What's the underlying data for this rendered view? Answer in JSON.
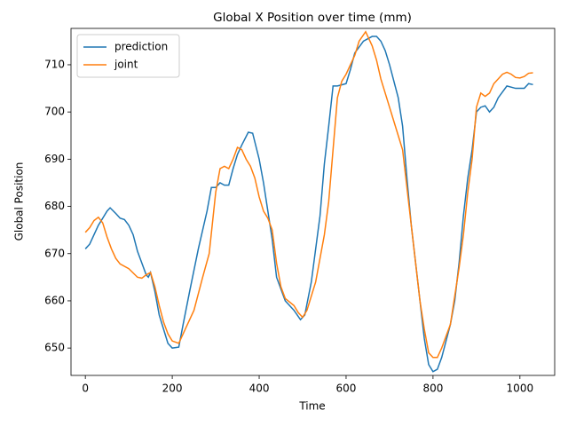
{
  "chart_data": {
    "type": "line",
    "title": "Global X Position over time (mm)",
    "x_label": "Time",
    "y_label": "Global Position",
    "xlim": [
      -33,
      1080
    ],
    "ylim": [
      644.2,
      717.7
    ],
    "xticks": [
      0,
      200,
      400,
      600,
      800,
      1000
    ],
    "yticks": [
      650,
      660,
      670,
      680,
      690,
      700,
      710
    ],
    "legend": "upper left",
    "grid": false,
    "series": [
      {
        "name": "prediction",
        "color": "#1f77b4",
        "x": [
          0,
          10,
          20,
          30,
          40,
          50,
          57,
          70,
          80,
          90,
          100,
          110,
          120,
          130,
          140,
          145,
          150,
          160,
          170,
          180,
          190,
          200,
          215,
          225,
          240,
          260,
          280,
          290,
          300,
          310,
          320,
          330,
          340,
          350,
          360,
          375,
          385,
          400,
          410,
          420,
          430,
          440,
          460,
          480,
          495,
          505,
          520,
          540,
          550,
          560,
          570,
          580,
          600,
          610,
          620,
          640,
          660,
          670,
          680,
          690,
          700,
          720,
          730,
          740,
          750,
          760,
          770,
          780,
          790,
          800,
          810,
          820,
          840,
          850,
          860,
          870,
          880,
          890,
          900,
          910,
          920,
          930,
          940,
          950,
          970,
          990,
          1010,
          1020,
          1030
        ],
        "values": [
          671,
          672,
          674,
          676,
          677.5,
          679,
          679.7,
          678.5,
          677.5,
          677.2,
          676,
          674,
          670.5,
          668,
          665.5,
          665,
          666,
          662,
          657,
          654,
          651,
          650,
          650.2,
          655,
          662,
          671,
          679,
          684,
          684,
          685,
          684.5,
          684.5,
          688,
          691,
          693,
          695.7,
          695.5,
          690,
          685,
          679,
          673,
          665,
          660,
          658,
          656,
          657,
          664,
          678,
          689,
          697,
          705.5,
          705.5,
          706,
          709,
          712.5,
          715,
          716,
          716,
          715,
          713,
          710,
          703,
          697,
          686,
          676,
          668,
          660,
          652,
          646.5,
          645,
          645.5,
          648,
          655,
          660,
          668,
          678,
          686,
          692,
          700,
          701,
          701.3,
          700,
          701,
          703,
          705.5,
          705,
          705,
          706,
          705.8
        ]
      },
      {
        "name": "joint",
        "color": "#ff7f0e",
        "x": [
          0,
          10,
          20,
          30,
          40,
          50,
          60,
          70,
          80,
          100,
          120,
          130,
          140,
          150,
          160,
          170,
          180,
          190,
          200,
          215,
          230,
          250,
          270,
          285,
          300,
          310,
          320,
          330,
          340,
          350,
          360,
          370,
          380,
          390,
          400,
          410,
          420,
          430,
          440,
          450,
          460,
          480,
          490,
          500,
          510,
          530,
          550,
          560,
          570,
          580,
          590,
          600,
          620,
          630,
          645,
          660,
          670,
          680,
          700,
          720,
          730,
          740,
          750,
          760,
          770,
          780,
          790,
          800,
          810,
          820,
          840,
          860,
          870,
          880,
          890,
          900,
          910,
          920,
          930,
          940,
          960,
          970,
          980,
          990,
          1000,
          1010,
          1020,
          1030
        ],
        "values": [
          674.5,
          675.5,
          677,
          677.7,
          676.5,
          673.5,
          671,
          669,
          667.8,
          666.8,
          665,
          664.8,
          665.5,
          666,
          663,
          659,
          655.5,
          653,
          651.5,
          651,
          654,
          658,
          665,
          670,
          683,
          688,
          688.5,
          688,
          690,
          692.5,
          692,
          690,
          688.5,
          686,
          682,
          679,
          677.5,
          675,
          668,
          663,
          660.5,
          659,
          657.5,
          656.5,
          658,
          664,
          674,
          681,
          692,
          703,
          706.5,
          708,
          712,
          715,
          717,
          714,
          711,
          707,
          701,
          695,
          692,
          684,
          676,
          668,
          660,
          654,
          649,
          648,
          648,
          650,
          655,
          667,
          674,
          683,
          690,
          701,
          704,
          703.3,
          704,
          706,
          708,
          708.4,
          708,
          707.3,
          707.2,
          707.5,
          708.2,
          708.3
        ]
      }
    ]
  }
}
